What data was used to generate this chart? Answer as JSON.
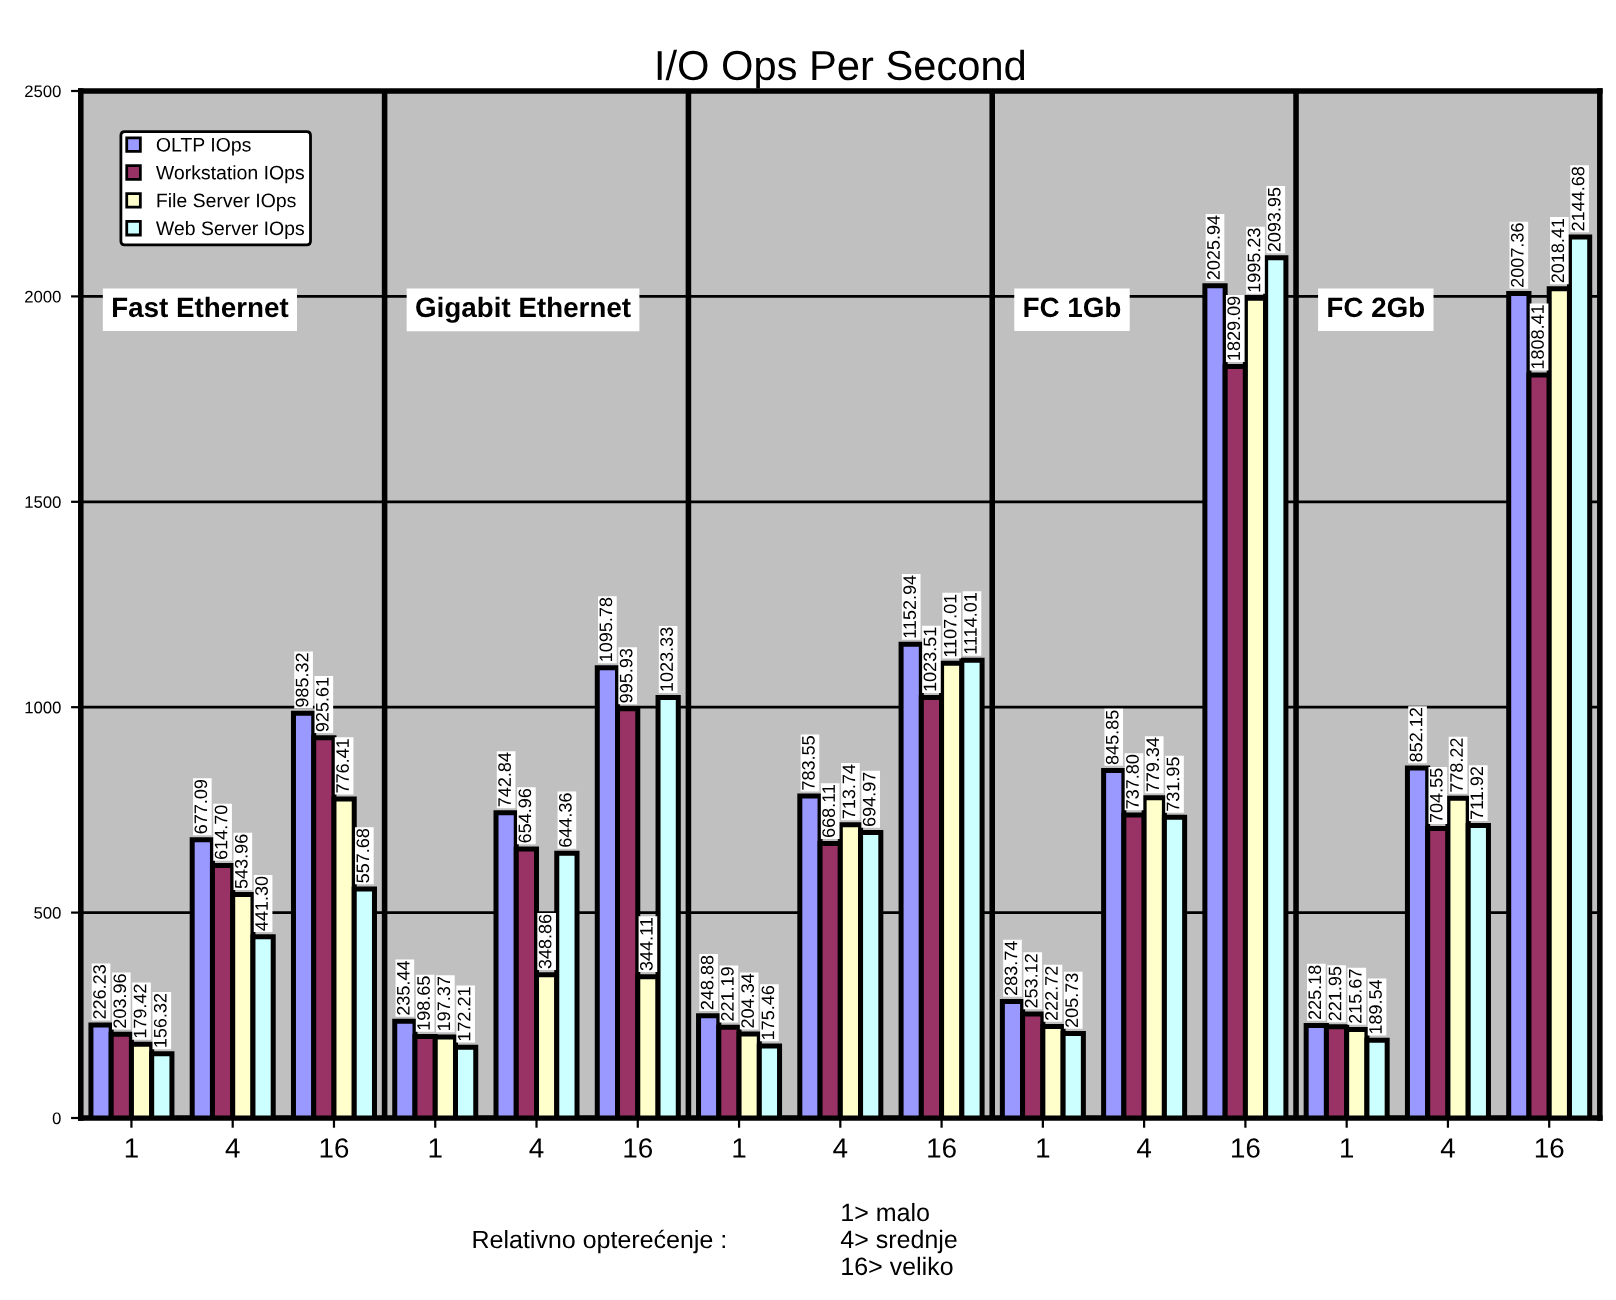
{
  "chart_data": {
    "type": "bar",
    "title": "I/O Ops Per Second",
    "categories": [
      "1",
      "4",
      "16",
      "1",
      "4",
      "16",
      "1",
      "4",
      "16",
      "1",
      "4",
      "16",
      "1",
      "4",
      "16"
    ],
    "series": [
      {
        "name": "OLTP IOps",
        "color": "#9999ff",
        "values": [
          226.23,
          677.09,
          985.32,
          235.44,
          742.84,
          1095.78,
          248.88,
          783.55,
          1152.94,
          283.74,
          845.85,
          2025.94,
          225.18,
          852.12,
          2007.36
        ],
        "value_labels": [
          "226.23",
          "677.09",
          "985.32",
          "235.44",
          "742.84",
          "1095.78",
          "248.88",
          "783.55",
          "1152.94",
          "283.74",
          "845.85",
          "2025.94",
          "225.18",
          "852.12",
          "2007.36"
        ]
      },
      {
        "name": "Workstation IOps",
        "color": "#993366",
        "values": [
          203.96,
          614.7,
          925.61,
          198.65,
          654.96,
          995.93,
          221.19,
          668.11,
          1023.51,
          253.12,
          737.8,
          1829.09,
          221.95,
          704.55,
          1808.41
        ],
        "value_labels": [
          "203.96",
          "614.70",
          "925.61",
          "198.65",
          "654.96",
          "995.93",
          "221.19",
          "668.11",
          "1023.51",
          "253.12",
          "737.80",
          "1829.09",
          "221.95",
          "704.55",
          "1808.41"
        ]
      },
      {
        "name": "File Server IOps",
        "color": "#ffffcc",
        "values": [
          179.42,
          543.96,
          776.41,
          197.37,
          348.86,
          344.11,
          204.34,
          713.74,
          1107.01,
          222.72,
          779.34,
          1995.23,
          215.67,
          778.22,
          2018.41
        ],
        "value_labels": [
          "179.42",
          "543.96",
          "776.41",
          "197.37",
          "348.86",
          "344.11",
          "204.34",
          "713.74",
          "1107.01",
          "222.72",
          "779.34",
          "1995.23",
          "215.67",
          "778.22",
          "2018.41"
        ]
      },
      {
        "name": "Web Server IOps",
        "color": "#ccffff",
        "values": [
          156.32,
          441.3,
          557.68,
          172.21,
          644.36,
          1023.33,
          175.46,
          694.97,
          1114.01,
          205.73,
          731.95,
          2093.95,
          189.54,
          711.92,
          2144.68
        ],
        "value_labels": [
          "156.32",
          "441.30",
          "557.68",
          "172.21",
          "644.36",
          "1023.33",
          "175.46",
          "694.97",
          "1114.01",
          "205.73",
          "731.95",
          "2093.95",
          "189.54",
          "711.92",
          "2144.68"
        ]
      }
    ],
    "ylim": [
      0,
      2500
    ],
    "yticks": [
      0,
      500,
      1000,
      1500,
      2000,
      2500
    ],
    "grid": "y",
    "legend": "top left",
    "annotations": [
      "Fast Ethernet",
      "Gigabit Ethernet",
      "FC 1Gb",
      "FC 2Gb",
      "Relativno opterećenje :",
      "1> malo\n4> srednje\n16> veliko"
    ]
  }
}
